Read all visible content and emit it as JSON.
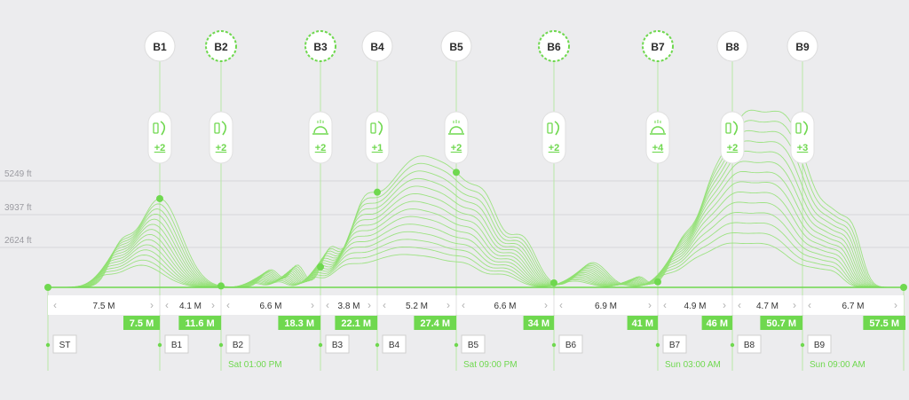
{
  "elevation_axis": {
    "labels": [
      "5249 ft",
      "3937 ft",
      "2624 ft"
    ]
  },
  "colors": {
    "accent": "#6fd84f",
    "line": "#8fe070",
    "bg": "#ececee",
    "badge_text": "#ffffff",
    "dark_text": "#2a2a2a"
  },
  "stations": [
    {
      "id": "B1",
      "dashed": false,
      "amenity_icon": "drink-snack-icon",
      "count": "+2"
    },
    {
      "id": "B2",
      "dashed": true,
      "amenity_icon": "drink-snack-icon",
      "count": "+2"
    },
    {
      "id": "B3",
      "dashed": true,
      "amenity_icon": "meal-cloche-icon",
      "count": "+2"
    },
    {
      "id": "B4",
      "dashed": false,
      "amenity_icon": "drink-snack-icon",
      "count": "+1"
    },
    {
      "id": "B5",
      "dashed": false,
      "amenity_icon": "meal-cloche-icon",
      "count": "+2"
    },
    {
      "id": "B6",
      "dashed": true,
      "amenity_icon": "drink-snack-icon",
      "count": "+2"
    },
    {
      "id": "B7",
      "dashed": true,
      "amenity_icon": "meal-cloche-icon",
      "count": "+4"
    },
    {
      "id": "B8",
      "dashed": false,
      "amenity_icon": "drink-snack-icon",
      "count": "+2"
    },
    {
      "id": "B9",
      "dashed": false,
      "amenity_icon": "drink-snack-icon",
      "count": "+3"
    }
  ],
  "segments": [
    {
      "distance": "7.5 M",
      "cumulative": "7.5 M"
    },
    {
      "distance": "4.1 M",
      "cumulative": "11.6 M"
    },
    {
      "distance": "6.6 M",
      "cumulative": "18.3 M"
    },
    {
      "distance": "3.8 M",
      "cumulative": "22.1 M"
    },
    {
      "distance": "5.2 M",
      "cumulative": "27.4 M"
    },
    {
      "distance": "6.6 M",
      "cumulative": "34 M"
    },
    {
      "distance": "6.9 M",
      "cumulative": "41 M"
    },
    {
      "distance": "4.9 M",
      "cumulative": "46 M"
    },
    {
      "distance": "4.7 M",
      "cumulative": "50.7 M"
    },
    {
      "distance": "6.7 M",
      "cumulative": "57.5 M"
    }
  ],
  "nav_arrows": {
    "prev": "‹",
    "next": "›"
  },
  "bottom_markers": [
    "ST",
    "B1",
    "B2",
    "B3",
    "B4",
    "B5",
    "B6",
    "B7",
    "B8",
    "B9"
  ],
  "times": [
    {
      "after": "B2",
      "label": "Sat 01:00 PM"
    },
    {
      "after": "B5",
      "label": "Sat 09:00 PM"
    },
    {
      "after": "B7",
      "label": "Sun 03:00 AM"
    },
    {
      "after": "B9",
      "label": "Sun 09:00 AM"
    }
  ]
}
